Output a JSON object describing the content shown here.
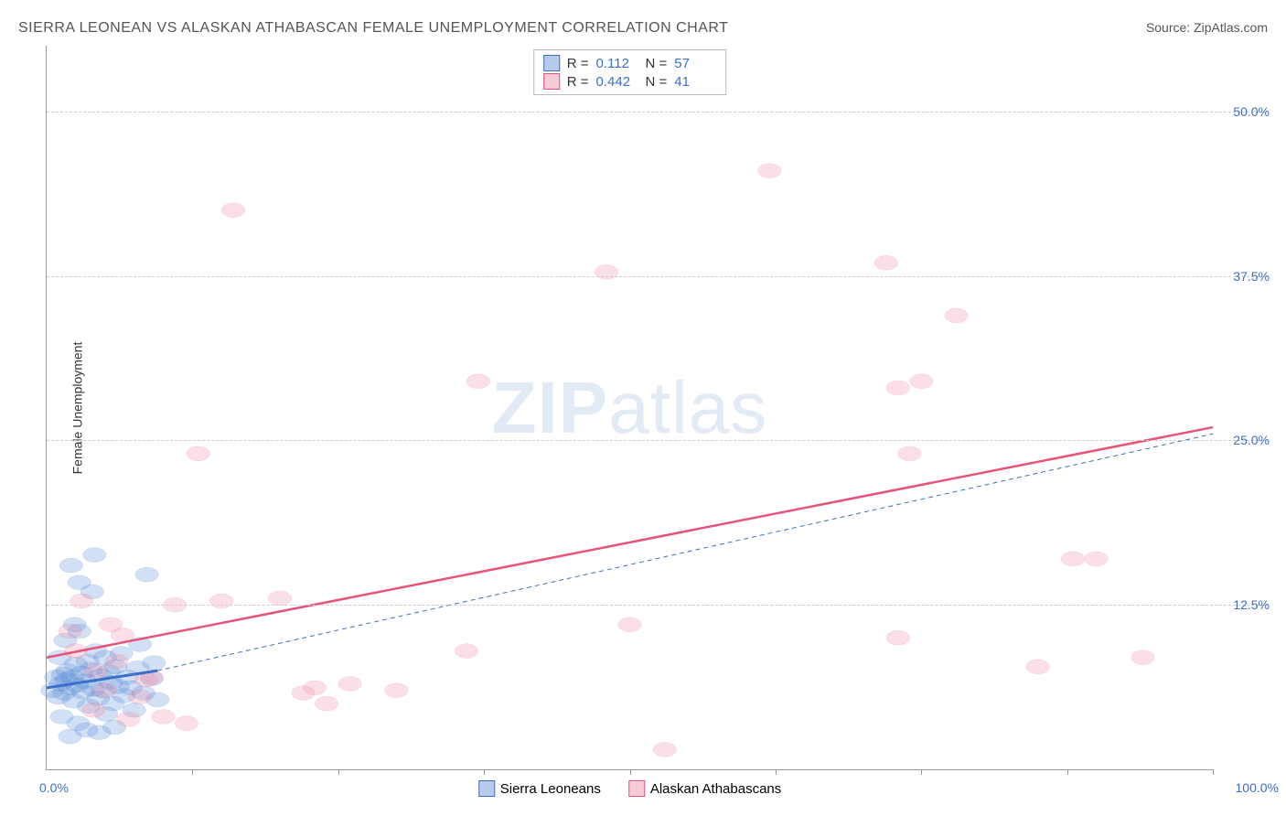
{
  "title": "SIERRA LEONEAN VS ALASKAN ATHABASCAN FEMALE UNEMPLOYMENT CORRELATION CHART",
  "source": "Source: ZipAtlas.com",
  "y_axis_label": "Female Unemployment",
  "watermark_zip": "ZIP",
  "watermark_atlas": "atlas",
  "chart": {
    "type": "scatter",
    "xlim": [
      0,
      100
    ],
    "ylim": [
      0,
      55
    ],
    "y_ticks": [
      {
        "value": 12.5,
        "label": "12.5%"
      },
      {
        "value": 25.0,
        "label": "25.0%"
      },
      {
        "value": 37.5,
        "label": "37.5%"
      },
      {
        "value": 50.0,
        "label": "50.0%"
      }
    ],
    "x_ticks": [
      12.5,
      25,
      37.5,
      50,
      62.5,
      75,
      87.5,
      100
    ],
    "x_min_label": "0.0%",
    "x_max_label": "100.0%",
    "marker_radius": 9,
    "marker_fill_opacity": 0.28,
    "marker_stroke_width": 1.2,
    "grid_color": "#cccccc",
    "background_color": "#ffffff",
    "series": [
      {
        "id": "sierra",
        "name": "Sierra Leoneans",
        "color": "#5b8fd6",
        "stroke": "#3b6fc9",
        "r_value": "0.112",
        "n_value": "57",
        "trend": {
          "x1": 0,
          "y1": 6.2,
          "x2": 9.5,
          "y2": 7.5,
          "width": 3,
          "dash": "none"
        },
        "trend_extension": {
          "x1": 9.5,
          "y1": 7.5,
          "x2": 100,
          "y2": 25.5,
          "width": 1,
          "dash": "5,4"
        },
        "points": [
          [
            0.5,
            6
          ],
          [
            0.8,
            7
          ],
          [
            1.0,
            5.5
          ],
          [
            1.2,
            6.5
          ],
          [
            1.4,
            7.2
          ],
          [
            1.5,
            5.8
          ],
          [
            1.7,
            6.8
          ],
          [
            1.8,
            7.5
          ],
          [
            2.0,
            6.2
          ],
          [
            2.1,
            15.5
          ],
          [
            2.2,
            7.0
          ],
          [
            2.3,
            5.2
          ],
          [
            2.5,
            8.0
          ],
          [
            2.6,
            6.4
          ],
          [
            2.8,
            14.2
          ],
          [
            2.8,
            10.5
          ],
          [
            3.0,
            7.3
          ],
          [
            3.1,
            5.9
          ],
          [
            3.3,
            6.7
          ],
          [
            3.5,
            8.2
          ],
          [
            3.6,
            4.8
          ],
          [
            3.8,
            7.6
          ],
          [
            4.0,
            6.1
          ],
          [
            4.1,
            16.3
          ],
          [
            4.2,
            9.0
          ],
          [
            4.4,
            5.4
          ],
          [
            4.6,
            7.1
          ],
          [
            4.8,
            6.0
          ],
          [
            5.0,
            8.5
          ],
          [
            5.1,
            4.2
          ],
          [
            5.3,
            7.4
          ],
          [
            5.5,
            6.6
          ],
          [
            5.7,
            5.0
          ],
          [
            5.9,
            7.8
          ],
          [
            6.1,
            6.3
          ],
          [
            6.4,
            8.8
          ],
          [
            6.6,
            5.6
          ],
          [
            6.9,
            7.0
          ],
          [
            7.2,
            6.2
          ],
          [
            7.5,
            4.5
          ],
          [
            7.8,
            7.7
          ],
          [
            8.0,
            9.5
          ],
          [
            8.3,
            5.8
          ],
          [
            8.6,
            14.8
          ],
          [
            9.0,
            6.9
          ],
          [
            9.2,
            8.1
          ],
          [
            9.5,
            5.3
          ],
          [
            2.0,
            2.5
          ],
          [
            3.4,
            3.0
          ],
          [
            4.5,
            2.8
          ],
          [
            1.3,
            4.0
          ],
          [
            2.7,
            3.5
          ],
          [
            5.8,
            3.2
          ],
          [
            1.1,
            8.5
          ],
          [
            2.4,
            11.0
          ],
          [
            3.9,
            13.5
          ],
          [
            1.6,
            9.8
          ]
        ]
      },
      {
        "id": "alaskan",
        "name": "Alaskan Athabascans",
        "color": "#f08ca8",
        "stroke": "#e8537a",
        "r_value": "0.442",
        "n_value": "41",
        "trend": {
          "x1": 0,
          "y1": 8.5,
          "x2": 100,
          "y2": 26.0,
          "width": 2.5,
          "dash": "none"
        },
        "points": [
          [
            2,
            10.5
          ],
          [
            3,
            12.8
          ],
          [
            4,
            4.5
          ],
          [
            5,
            6.0
          ],
          [
            5.5,
            11.0
          ],
          [
            6,
            8.2
          ],
          [
            7,
            3.8
          ],
          [
            8,
            5.5
          ],
          [
            9,
            7.0
          ],
          [
            10,
            4.0
          ],
          [
            11,
            12.5
          ],
          [
            12,
            3.5
          ],
          [
            13,
            24.0
          ],
          [
            15,
            12.8
          ],
          [
            16,
            42.5
          ],
          [
            20,
            13.0
          ],
          [
            22,
            5.8
          ],
          [
            23,
            6.2
          ],
          [
            24,
            5.0
          ],
          [
            26,
            6.5
          ],
          [
            30,
            6.0
          ],
          [
            36,
            9.0
          ],
          [
            37,
            29.5
          ],
          [
            48,
            37.8
          ],
          [
            50,
            11.0
          ],
          [
            53,
            1.5
          ],
          [
            62,
            45.5
          ],
          [
            72,
            38.5
          ],
          [
            73,
            10.0
          ],
          [
            74,
            24.0
          ],
          [
            73,
            29.0
          ],
          [
            75,
            29.5
          ],
          [
            78,
            34.5
          ],
          [
            85,
            7.8
          ],
          [
            88,
            16.0
          ],
          [
            90,
            16.0
          ],
          [
            94,
            8.5
          ],
          [
            2.5,
            9.0
          ],
          [
            4.2,
            7.5
          ],
          [
            6.5,
            10.2
          ],
          [
            8.5,
            6.8
          ]
        ]
      }
    ]
  },
  "legend": {
    "r_label": "R =",
    "n_label": "N ="
  }
}
